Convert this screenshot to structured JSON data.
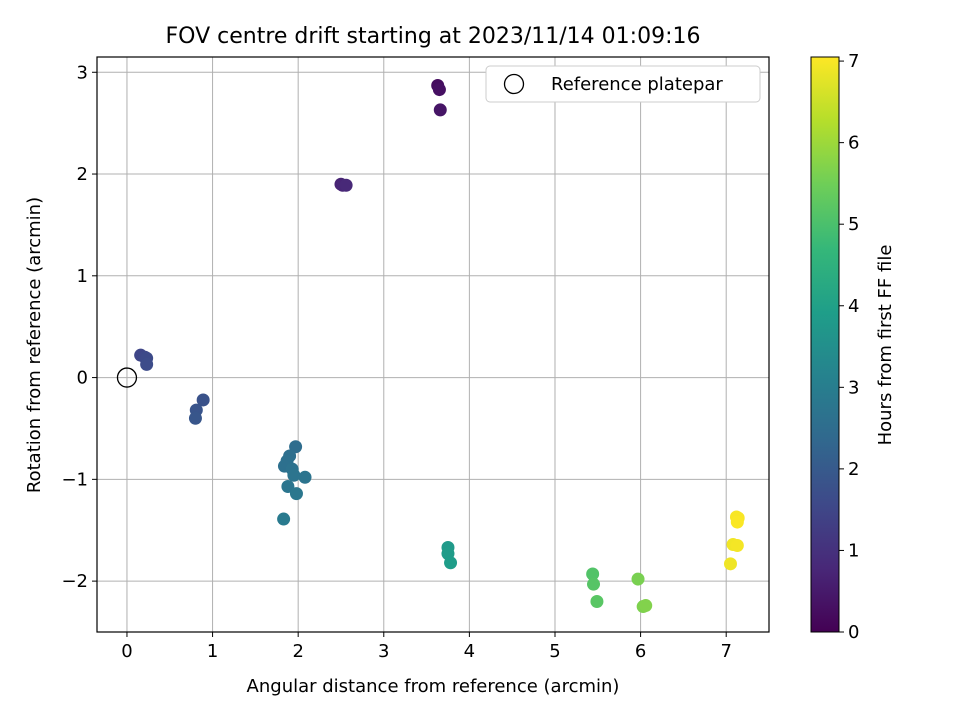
{
  "chart_data": {
    "type": "scatter",
    "title": "FOV centre drift starting at 2023/11/14 01:09:16",
    "xlabel": "Angular distance from reference (arcmin)",
    "ylabel": "Rotation from reference (arcmin)",
    "xlim": [
      -0.35,
      7.5
    ],
    "ylim": [
      -2.5,
      3.15
    ],
    "xticks": [
      0,
      1,
      2,
      3,
      4,
      5,
      6,
      7
    ],
    "yticks": [
      -2,
      -1,
      0,
      1,
      2,
      3
    ],
    "xtick_labels": [
      "0",
      "1",
      "2",
      "3",
      "4",
      "5",
      "6",
      "7"
    ],
    "ytick_labels": [
      "−2",
      "−1",
      "0",
      "1",
      "2",
      "3"
    ],
    "grid": true,
    "legend": {
      "placement": "top-right",
      "entries": [
        "Reference platepar"
      ]
    },
    "reference_point": {
      "x": 0,
      "y": 0
    },
    "colorbar": {
      "label": "Hours from first FF file",
      "range": [
        0,
        7.05
      ],
      "ticks": [
        0,
        1,
        2,
        3,
        4,
        5,
        6,
        7
      ],
      "tick_labels": [
        "0",
        "1",
        "2",
        "3",
        "4",
        "5",
        "6",
        "7"
      ],
      "colormap": "viridis",
      "colors": [
        "#440154",
        "#482878",
        "#3e4989",
        "#31688e",
        "#26828e",
        "#1f9e89",
        "#35b779",
        "#6ece58",
        "#b5de2b",
        "#fde725"
      ]
    },
    "points": [
      {
        "x": 3.63,
        "y": 2.87,
        "c": 0.25
      },
      {
        "x": 3.65,
        "y": 2.83,
        "c": 0.3
      },
      {
        "x": 3.66,
        "y": 2.63,
        "c": 0.4
      },
      {
        "x": 2.5,
        "y": 1.9,
        "c": 0.7
      },
      {
        "x": 2.52,
        "y": 1.89,
        "c": 0.75
      },
      {
        "x": 2.56,
        "y": 1.89,
        "c": 0.8
      },
      {
        "x": 0.16,
        "y": 0.22,
        "c": 1.5
      },
      {
        "x": 0.21,
        "y": 0.2,
        "c": 1.55
      },
      {
        "x": 0.23,
        "y": 0.19,
        "c": 1.6
      },
      {
        "x": 0.23,
        "y": 0.13,
        "c": 1.65
      },
      {
        "x": 0.89,
        "y": -0.22,
        "c": 1.8
      },
      {
        "x": 0.81,
        "y": -0.32,
        "c": 1.85
      },
      {
        "x": 0.8,
        "y": -0.4,
        "c": 1.9
      },
      {
        "x": 1.97,
        "y": -0.68,
        "c": 2.5
      },
      {
        "x": 1.9,
        "y": -0.77,
        "c": 2.55
      },
      {
        "x": 1.87,
        "y": -0.82,
        "c": 2.6
      },
      {
        "x": 1.84,
        "y": -0.87,
        "c": 2.6
      },
      {
        "x": 1.93,
        "y": -0.9,
        "c": 2.65
      },
      {
        "x": 1.95,
        "y": -0.96,
        "c": 2.7
      },
      {
        "x": 2.08,
        "y": -0.98,
        "c": 2.7
      },
      {
        "x": 1.88,
        "y": -1.07,
        "c": 2.75
      },
      {
        "x": 1.98,
        "y": -1.14,
        "c": 2.8
      },
      {
        "x": 1.83,
        "y": -1.39,
        "c": 2.9
      },
      {
        "x": 3.75,
        "y": -1.67,
        "c": 3.8
      },
      {
        "x": 3.75,
        "y": -1.73,
        "c": 3.85
      },
      {
        "x": 3.78,
        "y": -1.82,
        "c": 3.9
      },
      {
        "x": 5.44,
        "y": -1.93,
        "c": 5.1
      },
      {
        "x": 5.45,
        "y": -2.03,
        "c": 5.15
      },
      {
        "x": 5.49,
        "y": -2.2,
        "c": 5.2
      },
      {
        "x": 5.97,
        "y": -1.98,
        "c": 5.6
      },
      {
        "x": 6.03,
        "y": -2.25,
        "c": 5.65
      },
      {
        "x": 6.06,
        "y": -2.24,
        "c": 5.7
      },
      {
        "x": 7.05,
        "y": -1.83,
        "c": 6.9
      },
      {
        "x": 7.08,
        "y": -1.64,
        "c": 6.92
      },
      {
        "x": 7.13,
        "y": -1.65,
        "c": 6.95
      },
      {
        "x": 7.12,
        "y": -1.37,
        "c": 7.0
      },
      {
        "x": 7.14,
        "y": -1.38,
        "c": 7.0
      },
      {
        "x": 7.13,
        "y": -1.42,
        "c": 7.02
      }
    ]
  }
}
